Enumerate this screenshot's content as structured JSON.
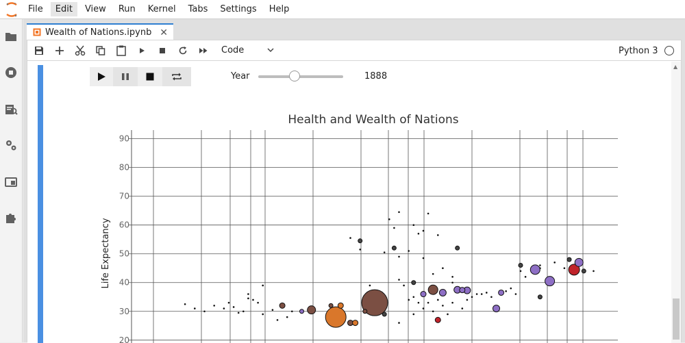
{
  "menubar": {
    "items": [
      "File",
      "Edit",
      "View",
      "Run",
      "Kernel",
      "Tabs",
      "Settings",
      "Help"
    ],
    "active": "Edit"
  },
  "tab": {
    "label": "Wealth of Nations.ipynb"
  },
  "toolbar": {
    "cell_type": "Code",
    "kernel": "Python 3"
  },
  "widget": {
    "year_label": "Year",
    "year_value": "1888",
    "slider_fraction": 0.43
  },
  "chart_data": {
    "type": "scatter",
    "title": "Health and Wealth of Nations",
    "ylabel": "Life Expectancy",
    "xlabel": "",
    "ylim": [
      19,
      93
    ],
    "yticks": [
      20,
      30,
      40,
      50,
      60,
      70,
      80,
      90
    ],
    "grid": true,
    "points": [
      {
        "x": 0.42,
        "y": 28,
        "r": 15,
        "color": "#d9772b"
      },
      {
        "x": 0.5,
        "y": 33,
        "r": 19,
        "color": "#7b4f43"
      },
      {
        "x": 0.37,
        "y": 30.5,
        "r": 6,
        "color": "#7b4f43"
      },
      {
        "x": 0.31,
        "y": 32,
        "r": 4,
        "color": "#7b4f43"
      },
      {
        "x": 0.45,
        "y": 26,
        "r": 4,
        "color": "#7b4f43"
      },
      {
        "x": 0.46,
        "y": 26,
        "r": 4,
        "color": "#d9772b"
      },
      {
        "x": 0.43,
        "y": 32,
        "r": 4,
        "color": "#d9772b"
      },
      {
        "x": 0.62,
        "y": 37.5,
        "r": 7,
        "color": "#7b4f43"
      },
      {
        "x": 0.6,
        "y": 36,
        "r": 4,
        "color": "#8e6fc5"
      },
      {
        "x": 0.64,
        "y": 36.5,
        "r": 5,
        "color": "#8e6fc5"
      },
      {
        "x": 0.67,
        "y": 37.5,
        "r": 5,
        "color": "#8e6fc5"
      },
      {
        "x": 0.69,
        "y": 37.3,
        "r": 5,
        "color": "#8e6fc5"
      },
      {
        "x": 0.68,
        "y": 37.4,
        "r": 4,
        "color": "#8e6fc5"
      },
      {
        "x": 0.75,
        "y": 31,
        "r": 5,
        "color": "#8e6fc5"
      },
      {
        "x": 0.76,
        "y": 36.5,
        "r": 4,
        "color": "#8e6fc5"
      },
      {
        "x": 0.83,
        "y": 44.5,
        "r": 7,
        "color": "#8e6fc5"
      },
      {
        "x": 0.86,
        "y": 40.5,
        "r": 7,
        "color": "#8e6fc5"
      },
      {
        "x": 0.91,
        "y": 44.5,
        "r": 8,
        "color": "#c0232b"
      },
      {
        "x": 0.92,
        "y": 47,
        "r": 6,
        "color": "#8e6fc5"
      },
      {
        "x": 0.63,
        "y": 27,
        "r": 4,
        "color": "#c0232b"
      },
      {
        "x": 0.35,
        "y": 30,
        "r": 3,
        "color": "#8e6fc5"
      },
      {
        "x": 0.41,
        "y": 32,
        "r": 3,
        "color": "#7b4f43"
      },
      {
        "x": 0.48,
        "y": 30,
        "r": 3,
        "color": "#7b4f43"
      },
      {
        "x": 0.67,
        "y": 52,
        "r": 3,
        "color": "#444"
      },
      {
        "x": 0.8,
        "y": 46,
        "r": 3,
        "color": "#444"
      },
      {
        "x": 0.84,
        "y": 35,
        "r": 3,
        "color": "#444"
      },
      {
        "x": 0.9,
        "y": 48,
        "r": 3,
        "color": "#444"
      },
      {
        "x": 0.47,
        "y": 54.5,
        "r": 3,
        "color": "#444"
      },
      {
        "x": 0.93,
        "y": 44,
        "r": 3,
        "color": "#444"
      },
      {
        "x": 0.58,
        "y": 40,
        "r": 3,
        "color": "#444"
      },
      {
        "x": 0.54,
        "y": 52,
        "r": 3,
        "color": "#444"
      },
      {
        "x": 0.52,
        "y": 29,
        "r": 3,
        "color": "#444"
      }
    ]
  }
}
